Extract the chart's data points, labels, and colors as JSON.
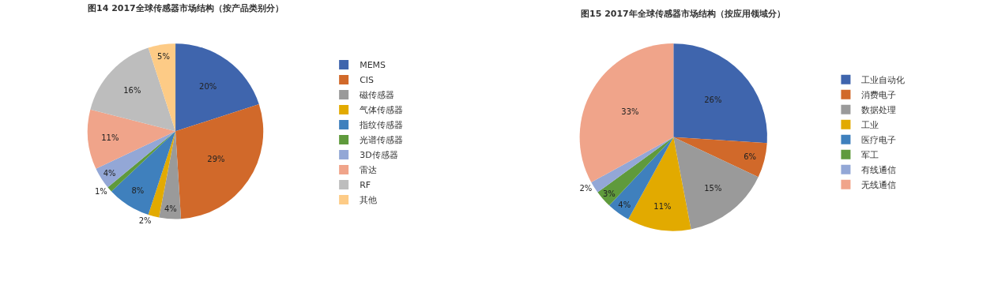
{
  "chart_data": [
    {
      "type": "pie",
      "title": "图14 2017全球传感器市场结构（按产品类别分）",
      "categories": [
        "MEMS",
        "CIS",
        "磁传感器",
        "气体传感器",
        "指纹传感器",
        "光谱传感器",
        "3D传感器",
        "雷达",
        "RF",
        "其他"
      ],
      "values": [
        20,
        29,
        4,
        2,
        8,
        1,
        4,
        11,
        16,
        5
      ],
      "value_labels": [
        "20%",
        "29%",
        "4%",
        "2%",
        "8%",
        "1%",
        "4%",
        "11%",
        "16%",
        "5%"
      ],
      "colors": [
        "#3f65ad",
        "#d1692a",
        "#9a9a9a",
        "#e2aa00",
        "#3f80bd",
        "#5f9a3c",
        "#93a7d6",
        "#f0a48a",
        "#bdbdbd",
        "#fdcb86"
      ],
      "legend": "right"
    },
    {
      "type": "pie",
      "title": "图15 2017年全球传感器市场结构（按应用领域分）",
      "categories": [
        "工业自动化",
        "消费电子",
        "数据处理",
        "工业",
        "医疗电子",
        "军工",
        "有线通信",
        "无线通信"
      ],
      "values": [
        26,
        6,
        15,
        11,
        4,
        3,
        2,
        33
      ],
      "value_labels": [
        "26%",
        "6%",
        "15%",
        "11%",
        "4%",
        "3%",
        "2%",
        "33%"
      ],
      "colors": [
        "#3f65ad",
        "#d1692a",
        "#9a9a9a",
        "#e2aa00",
        "#3f80bd",
        "#5f9a3c",
        "#93a7d6",
        "#f0a48a"
      ],
      "legend": "right"
    }
  ]
}
